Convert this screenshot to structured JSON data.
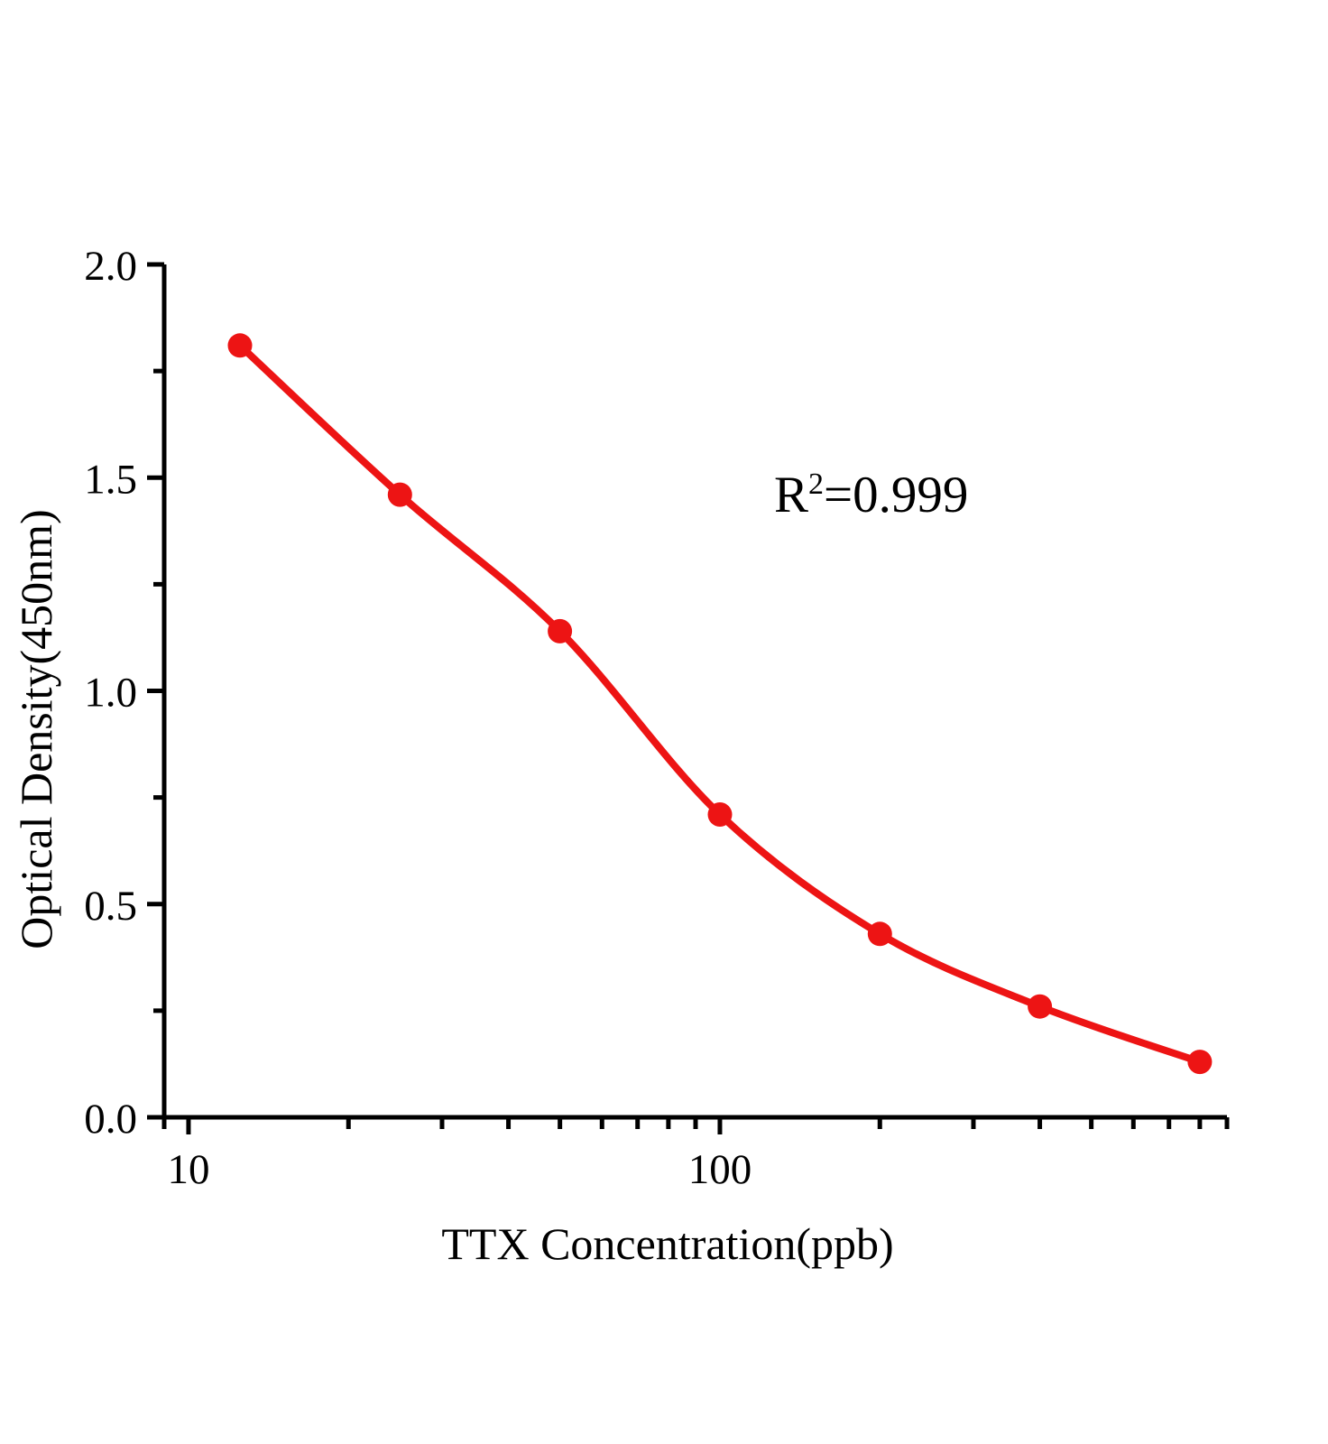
{
  "chart_data": {
    "type": "scatter",
    "title": "",
    "xlabel": "TTX Concentration(ppb)",
    "ylabel": "Optical Density(450nm)",
    "x_scale": "log10",
    "x": [
      12.5,
      25,
      50,
      100,
      200,
      400,
      800
    ],
    "y": [
      1.81,
      1.46,
      1.14,
      0.71,
      0.43,
      0.26,
      0.13
    ],
    "xlim": [
      9,
      900
    ],
    "ylim": [
      0.0,
      2.0
    ],
    "x_ticks_major": [
      {
        "value": 10,
        "label": "10"
      },
      {
        "value": 100,
        "label": "100"
      }
    ],
    "x_ticks_minor": [
      9,
      20,
      30,
      40,
      50,
      60,
      70,
      80,
      90,
      200,
      300,
      400,
      500,
      600,
      700,
      800,
      900
    ],
    "y_ticks_major": [
      {
        "value": 0.0,
        "label": "0.0"
      },
      {
        "value": 0.5,
        "label": "0.5"
      },
      {
        "value": 1.0,
        "label": "1.0"
      },
      {
        "value": 1.5,
        "label": "1.5"
      },
      {
        "value": 2.0,
        "label": "2.0"
      }
    ],
    "y_ticks_minor": [
      0.25,
      0.75,
      1.25,
      1.75
    ],
    "grid": false,
    "legend": "none",
    "annotation": {
      "text": "R2=0.999",
      "base": "R",
      "sup": "2",
      "rest": "=0.999"
    },
    "colors": {
      "curve": "#ED1414",
      "marker": "#ED1414",
      "axis": "#000000",
      "text": "#000000"
    }
  }
}
